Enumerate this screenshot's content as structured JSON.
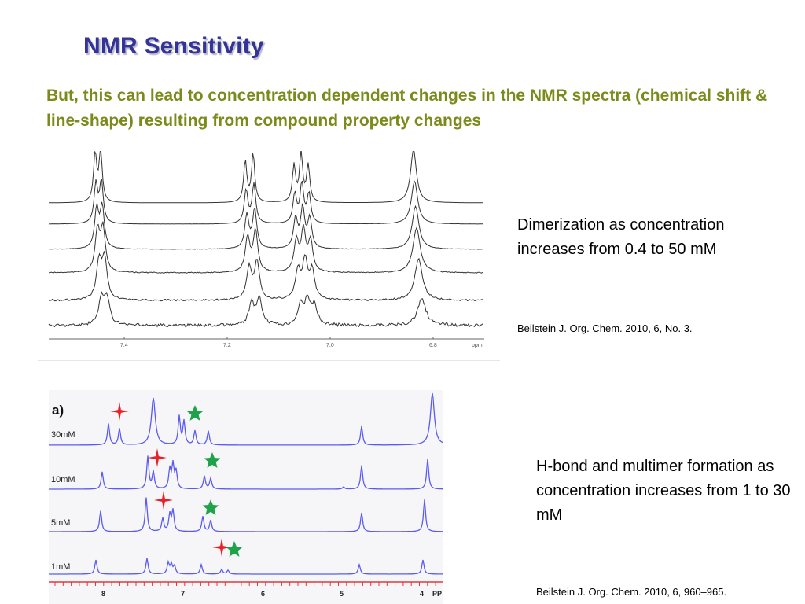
{
  "slide": {
    "title": "NMR Sensitivity",
    "subtitle": "But, this can lead to concentration dependent changes in the NMR spectra (chemical shift & line-shape) resulting from compound property changes"
  },
  "figure_top": {
    "axis_ticks": [
      "7.4",
      "7.2",
      "7.0",
      "6.8"
    ],
    "axis_unit": "ppm",
    "trace_color": "#333333",
    "caption": "Dimerization as concentration increases from 0.4 to 50 mM",
    "reference": "Beilstein J. Org. Chem. 2010, 6, No. 3."
  },
  "figure_bottom": {
    "panel_label": "a)",
    "axis_ticks": [
      "8",
      "7",
      "6",
      "5",
      "4"
    ],
    "axis_unit": "PP",
    "concentrations": [
      "30mM",
      "10mM",
      "5mM",
      "1mM"
    ],
    "trace_color": "#5b5bf0",
    "axis_color": "#e0393e",
    "marker_colors": {
      "red_star": "#e8202a",
      "green_star": "#1fa34a"
    },
    "caption": "H-bond and multimer formation as concentration increases from 1 to 30 mM",
    "reference": "Beilstein J. Org. Chem. 2010, 6, 960–965."
  }
}
